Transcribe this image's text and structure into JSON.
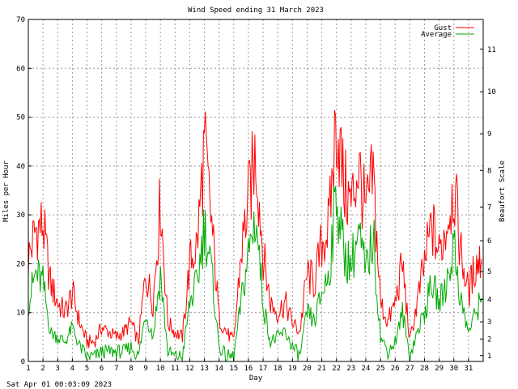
{
  "chart_data": {
    "type": "line",
    "title": "Wind Speed ending 31 March 2023",
    "xlabel": "Day",
    "ylabel": "Miles per Hour",
    "y2label": "Beaufort Scale",
    "footer": "Sat Apr 01 00:03:09 2023",
    "ylim": [
      0,
      70
    ],
    "xlim": [
      1,
      32
    ],
    "yticks": [
      0,
      10,
      20,
      30,
      40,
      50,
      60,
      70
    ],
    "xticks": [
      1,
      2,
      3,
      4,
      5,
      6,
      7,
      8,
      9,
      10,
      11,
      12,
      13,
      14,
      15,
      16,
      17,
      18,
      19,
      20,
      21,
      22,
      23,
      24,
      25,
      26,
      27,
      28,
      29,
      30,
      31
    ],
    "beaufort_ticks": [
      {
        "label": "1",
        "mph": 1.2
      },
      {
        "label": "2",
        "mph": 4.6
      },
      {
        "label": "3",
        "mph": 8.1
      },
      {
        "label": "4",
        "mph": 12.7
      },
      {
        "label": "5",
        "mph": 18.4
      },
      {
        "label": "6",
        "mph": 24.7
      },
      {
        "label": "7",
        "mph": 31.6
      },
      {
        "label": "8",
        "mph": 39.1
      },
      {
        "label": "9",
        "mph": 46.6
      },
      {
        "label": "10",
        "mph": 55.2
      },
      {
        "label": "11",
        "mph": 63.9
      }
    ],
    "grid": true,
    "legend_position": "top-right",
    "series": [
      {
        "name": "Gust",
        "color": "#ff0000",
        "x": [
          1,
          1.5,
          2,
          2.5,
          3,
          3.5,
          4,
          4.5,
          5,
          5.5,
          6,
          6.5,
          7,
          7.5,
          8,
          8.5,
          9,
          9.5,
          10,
          10.5,
          11,
          11.5,
          12,
          12.5,
          13,
          13.5,
          14,
          14.5,
          15,
          15.5,
          16,
          16.5,
          17,
          17.5,
          18,
          18.5,
          19,
          19.5,
          20,
          20.5,
          21,
          21.5,
          22,
          22.5,
          23,
          23.5,
          24,
          24.5,
          25,
          25.5,
          26,
          26.5,
          27,
          27.5,
          28,
          28.5,
          29,
          29.5,
          30,
          30.5,
          31,
          31.5,
          31.9
        ],
        "values": [
          21,
          27,
          28,
          16,
          12,
          10,
          14,
          8,
          4,
          4,
          7,
          6,
          5,
          6,
          8,
          4,
          18,
          12,
          33,
          8,
          6,
          5,
          20,
          24,
          44,
          28,
          9,
          6,
          4,
          22,
          33,
          43,
          22,
          12,
          10,
          12,
          8,
          6,
          18,
          16,
          24,
          28,
          50,
          36,
          32,
          40,
          30,
          38,
          12,
          8,
          12,
          20,
          4,
          12,
          20,
          28,
          22,
          28,
          36,
          22,
          14,
          20,
          21
        ]
      },
      {
        "name": "Average",
        "color": "#00aa00",
        "x": [
          1,
          1.5,
          2,
          2.5,
          3,
          3.5,
          4,
          4.5,
          5,
          5.5,
          6,
          6.5,
          7,
          7.5,
          8,
          8.5,
          9,
          9.5,
          10,
          10.5,
          11,
          11.5,
          12,
          12.5,
          13,
          13.5,
          14,
          14.5,
          15,
          15.5,
          16,
          16.5,
          17,
          17.5,
          18,
          18.5,
          19,
          19.5,
          20,
          20.5,
          21,
          21.5,
          22,
          22.5,
          23,
          23.5,
          24,
          24.5,
          25,
          25.5,
          26,
          26.5,
          27,
          27.5,
          28,
          28.5,
          29,
          29.5,
          30,
          30.5,
          31,
          31.5,
          31.9
        ],
        "values": [
          12,
          18,
          16,
          6,
          5,
          4,
          7,
          3,
          1,
          1,
          2,
          2,
          2,
          2,
          3,
          1,
          10,
          5,
          18,
          2,
          1,
          1,
          12,
          16,
          28,
          18,
          3,
          1,
          1,
          12,
          22,
          30,
          12,
          4,
          5,
          6,
          3,
          1,
          10,
          8,
          14,
          18,
          35,
          22,
          20,
          26,
          18,
          26,
          5,
          2,
          4,
          10,
          1,
          6,
          10,
          16,
          12,
          16,
          24,
          12,
          6,
          10,
          13
        ]
      }
    ]
  }
}
